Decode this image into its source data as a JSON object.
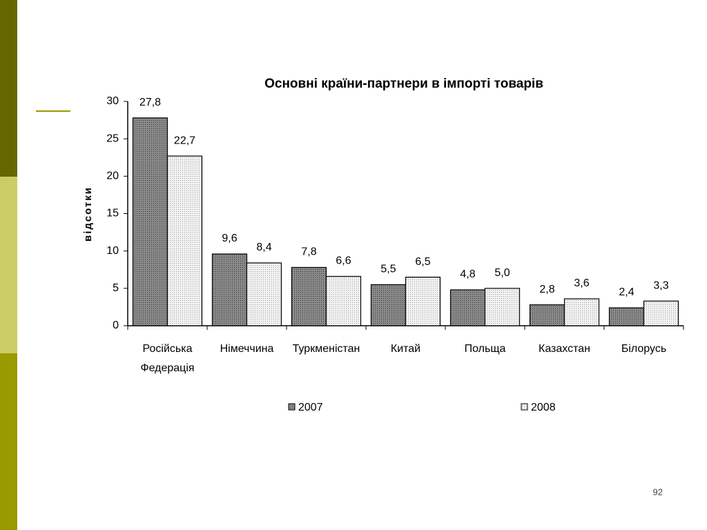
{
  "chart_data": {
    "type": "bar",
    "title": "Основні країни-партнери в імпорті товарів",
    "y_label": "відсотки",
    "categories": [
      "Російська Федерація",
      "Німеччина",
      "Туркменістан",
      "Китай",
      "Польща",
      "Казахстан",
      "Білорусь"
    ],
    "series": [
      {
        "name": "2007",
        "color": "#8a8a8a",
        "values": [
          27.8,
          9.6,
          7.8,
          5.5,
          4.8,
          2.8,
          2.4
        ],
        "value_labels": [
          "27,8",
          "9,6",
          "7,8",
          "5,5",
          "4,8",
          "2,8",
          "2,4"
        ]
      },
      {
        "name": "2008",
        "color": "#f2f2f2",
        "values": [
          22.7,
          8.4,
          6.6,
          6.5,
          5.0,
          3.6,
          3.3
        ],
        "value_labels": [
          "22,7",
          "8,4",
          "6,6",
          "6,5",
          "5,0",
          "3,6",
          "3,3"
        ]
      }
    ],
    "ylim": [
      0,
      30
    ],
    "yticks": [
      0,
      5,
      10,
      15,
      20,
      25,
      30
    ],
    "grid": false,
    "legend": "bottom"
  },
  "slide": {
    "page_number": "92"
  }
}
